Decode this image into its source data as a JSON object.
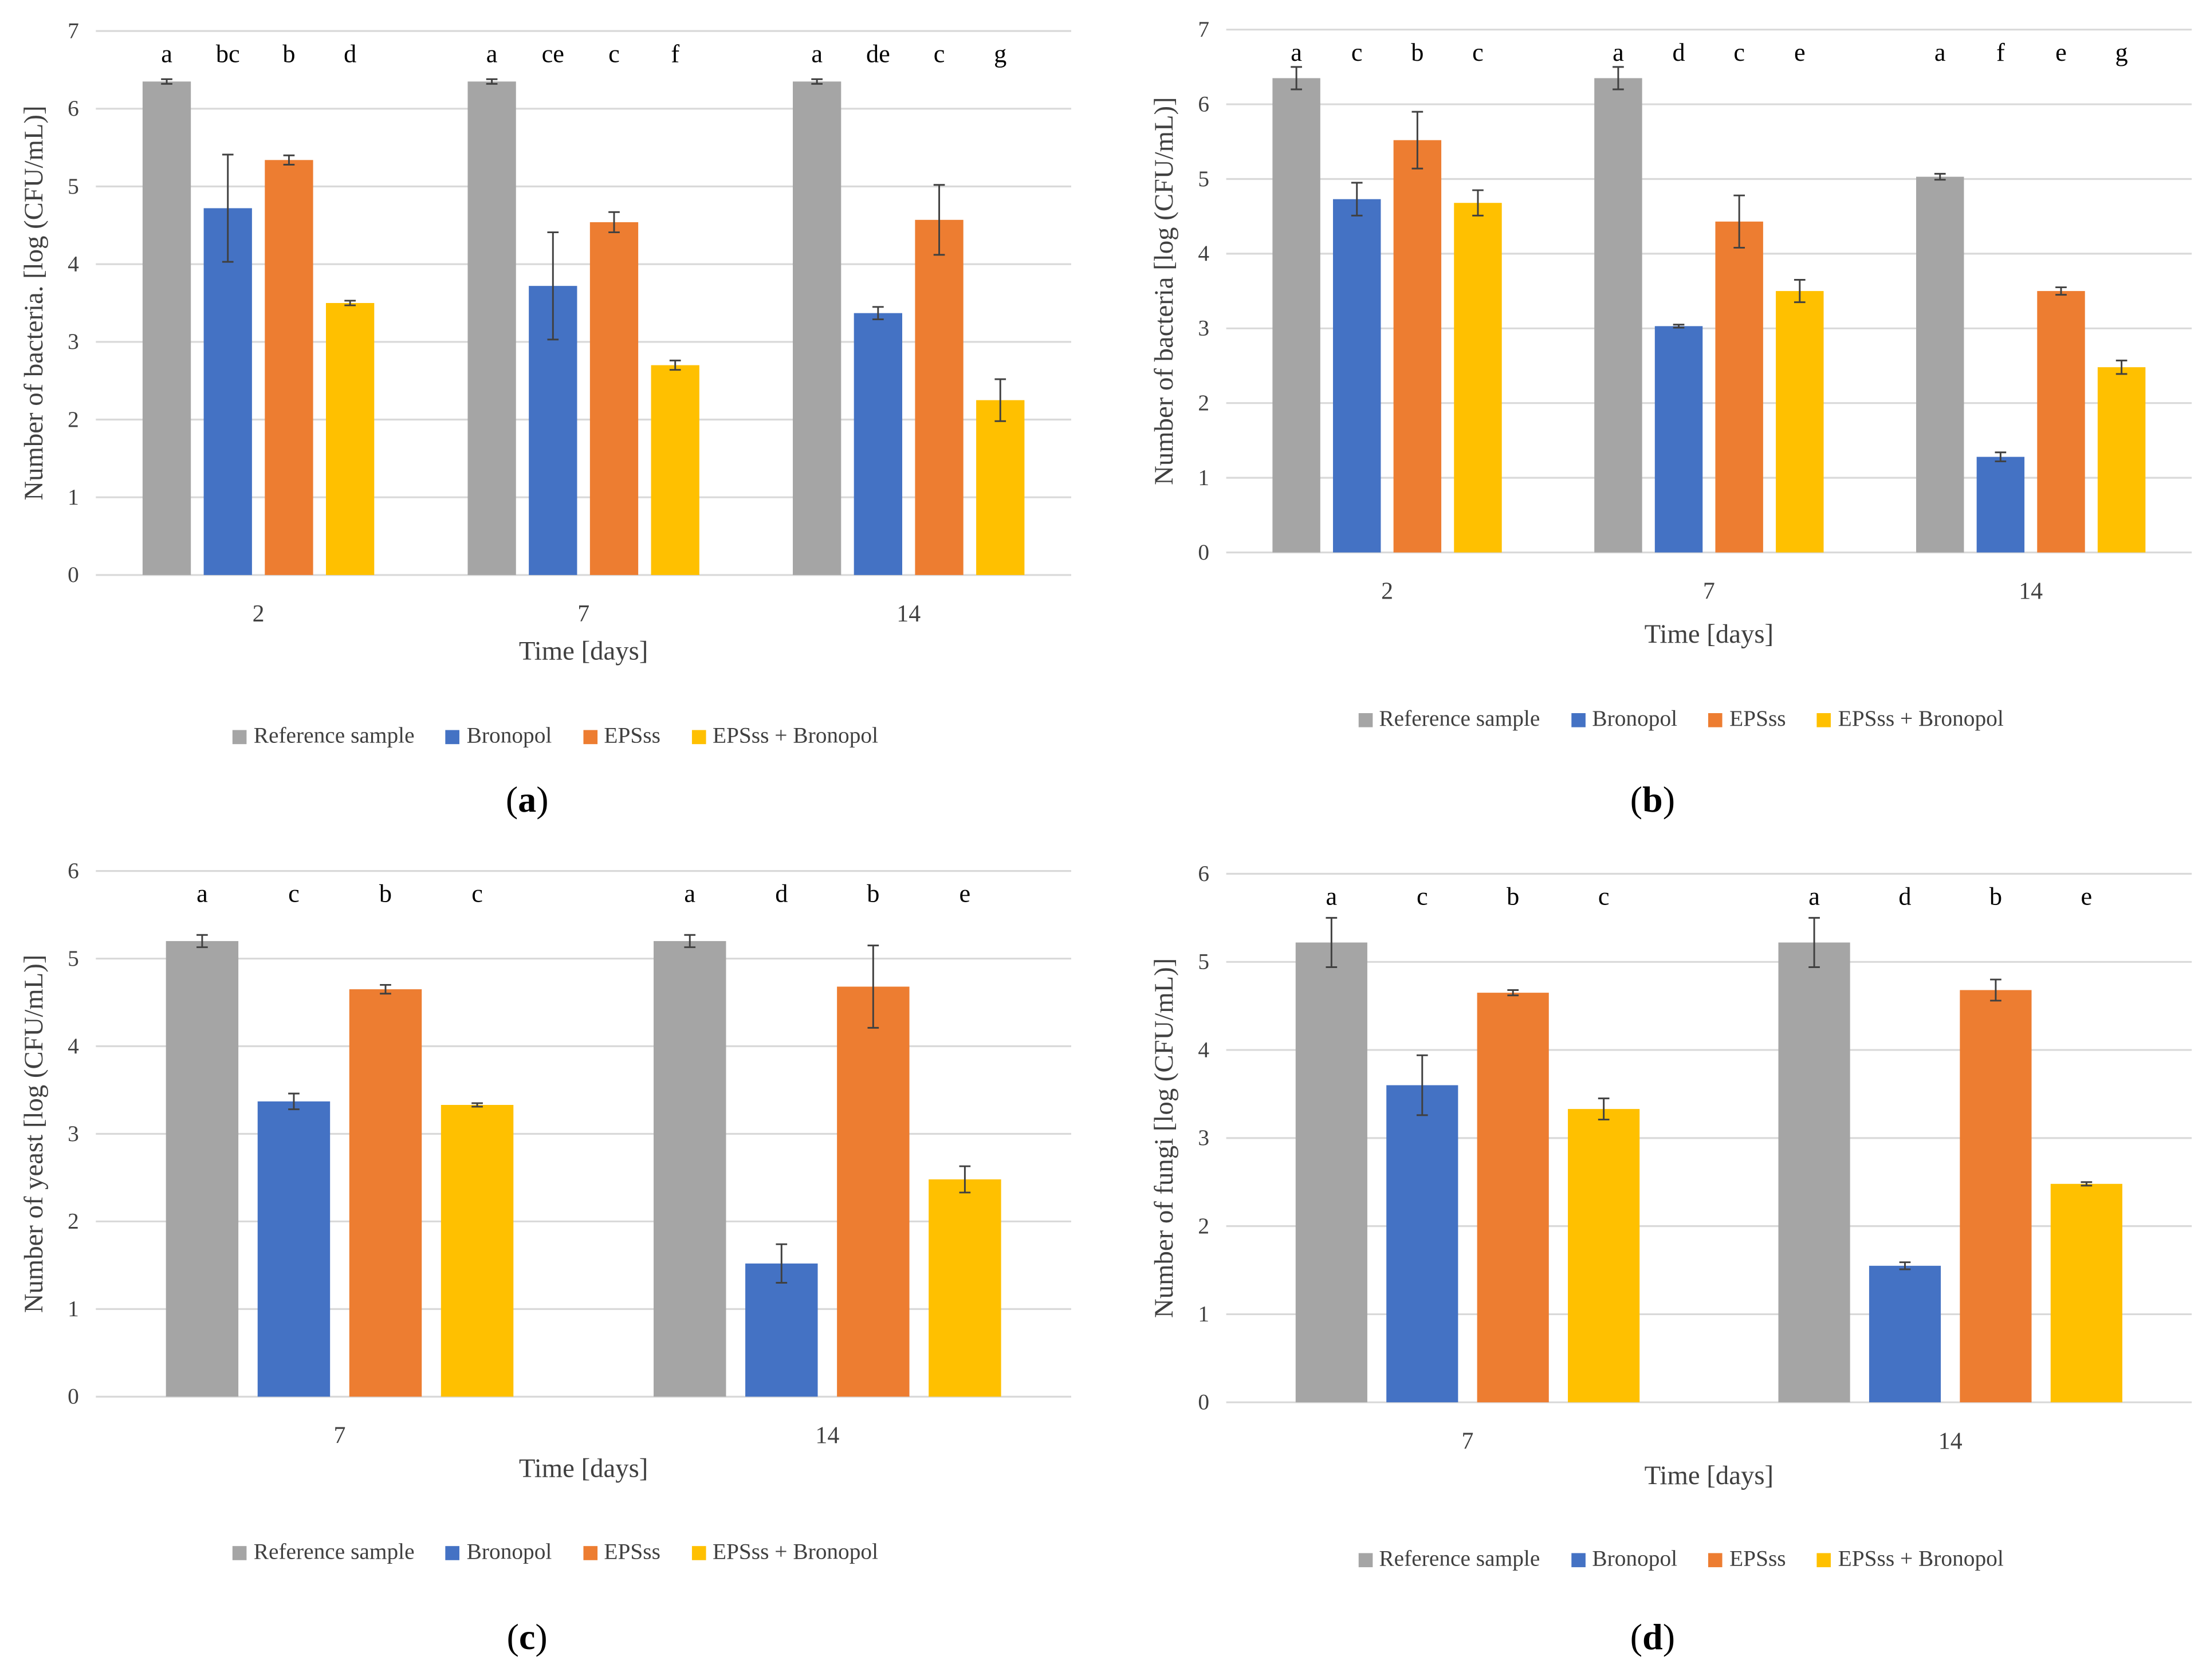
{
  "colors": {
    "Reference sample": "#A5A5A5",
    "Bronopol": "#4472C4",
    "EPSss": "#ED7D31",
    "EPSss + Bronopol": "#FFC000"
  },
  "chart_data": [
    {
      "type": "bar",
      "panel": "a",
      "title": "",
      "xlabel": "Time [days]",
      "ylabel": "Number of bacteria. [log (CFU/mL)]",
      "ylim": [
        0,
        7
      ],
      "yticks": [
        "0",
        "1",
        "2",
        "3",
        "4",
        "5",
        "6",
        "7"
      ],
      "grid": true,
      "legend": "bottom",
      "categories": [
        "2",
        "7",
        "14"
      ],
      "series": [
        {
          "name": "Reference sample",
          "values": [
            6.35,
            6.35,
            6.35
          ],
          "errors": [
            0.03,
            0.03,
            0.03
          ],
          "letters": [
            "a",
            "a",
            "a"
          ]
        },
        {
          "name": "Bronopol",
          "values": [
            4.72,
            3.72,
            3.37
          ],
          "errors": [
            0.69,
            0.69,
            0.08
          ],
          "letters": [
            "bc",
            "ce",
            "de"
          ]
        },
        {
          "name": "EPSss",
          "values": [
            5.34,
            4.54,
            4.57
          ],
          "errors": [
            0.06,
            0.13,
            0.45
          ],
          "letters": [
            "b",
            "c",
            "c"
          ]
        },
        {
          "name": "EPSss + Bronopol",
          "values": [
            3.5,
            2.7,
            2.25
          ],
          "errors": [
            0.03,
            0.06,
            0.27
          ],
          "letters": [
            "d",
            "f",
            "g"
          ]
        }
      ]
    },
    {
      "type": "bar",
      "panel": "b",
      "title": "",
      "xlabel": "Time [days]",
      "ylabel": "Number of bacteria [log (CFU/mL)]",
      "ylim": [
        0,
        7
      ],
      "yticks": [
        "0",
        "1",
        "2",
        "3",
        "4",
        "5",
        "6",
        "7"
      ],
      "grid": true,
      "legend": "bottom",
      "categories": [
        "2",
        "7",
        "14"
      ],
      "series": [
        {
          "name": "Reference sample",
          "values": [
            6.35,
            6.35,
            5.03
          ],
          "errors": [
            0.15,
            0.15,
            0.04
          ],
          "letters": [
            "a",
            "a",
            "a"
          ]
        },
        {
          "name": "Bronopol",
          "values": [
            4.73,
            3.03,
            1.28
          ],
          "errors": [
            0.22,
            0.02,
            0.06
          ],
          "letters": [
            "c",
            "d",
            "f"
          ]
        },
        {
          "name": "EPSss",
          "values": [
            5.52,
            4.43,
            3.5
          ],
          "errors": [
            0.38,
            0.35,
            0.05
          ],
          "letters": [
            "b",
            "c",
            "e"
          ]
        },
        {
          "name": "EPSss + Bronopol",
          "values": [
            4.68,
            3.5,
            2.48
          ],
          "errors": [
            0.17,
            0.15,
            0.09
          ],
          "letters": [
            "c",
            "e",
            "g"
          ]
        }
      ]
    },
    {
      "type": "bar",
      "panel": "c",
      "title": "",
      "xlabel": "Time [days]",
      "ylabel": "Number of yeast [log (CFU/mL)]",
      "ylim": [
        0,
        6
      ],
      "yticks": [
        "0",
        "1",
        "2",
        "3",
        "4",
        "5",
        "6"
      ],
      "grid": true,
      "legend": "bottom",
      "categories": [
        "7",
        "14"
      ],
      "series": [
        {
          "name": "Reference sample",
          "values": [
            5.2,
            5.2
          ],
          "errors": [
            0.07,
            0.07
          ],
          "letters": [
            "a",
            "a"
          ]
        },
        {
          "name": "Bronopol",
          "values": [
            3.37,
            1.52
          ],
          "errors": [
            0.09,
            0.22
          ],
          "letters": [
            "c",
            "d"
          ]
        },
        {
          "name": "EPSss",
          "values": [
            4.65,
            4.68
          ],
          "errors": [
            0.05,
            0.47
          ],
          "letters": [
            "b",
            "b"
          ]
        },
        {
          "name": "EPSss + Bronopol",
          "values": [
            3.33,
            2.48
          ],
          "errors": [
            0.02,
            0.15
          ],
          "letters": [
            "c",
            "e"
          ]
        }
      ]
    },
    {
      "type": "bar",
      "panel": "d",
      "title": "",
      "xlabel": "Time [days]",
      "ylabel": "Number of fungi [log (CFU/mL)]",
      "ylim": [
        0,
        6
      ],
      "yticks": [
        "0",
        "1",
        "2",
        "3",
        "4",
        "5",
        "6"
      ],
      "grid": true,
      "legend": "bottom",
      "categories": [
        "7",
        "14"
      ],
      "series": [
        {
          "name": "Reference sample",
          "values": [
            5.22,
            5.22
          ],
          "errors": [
            0.28,
            0.28
          ],
          "letters": [
            "a",
            "a"
          ]
        },
        {
          "name": "Bronopol",
          "values": [
            3.6,
            1.55
          ],
          "errors": [
            0.34,
            0.04
          ],
          "letters": [
            "c",
            "d"
          ]
        },
        {
          "name": "EPSss",
          "values": [
            4.65,
            4.68
          ],
          "errors": [
            0.03,
            0.12
          ],
          "letters": [
            "b",
            "b"
          ]
        },
        {
          "name": "EPSss + Bronopol",
          "values": [
            3.33,
            2.48
          ],
          "errors": [
            0.12,
            0.02
          ],
          "letters": [
            "c",
            "e"
          ]
        }
      ]
    }
  ],
  "panel_labels": [
    "a",
    "b",
    "c",
    "d"
  ]
}
